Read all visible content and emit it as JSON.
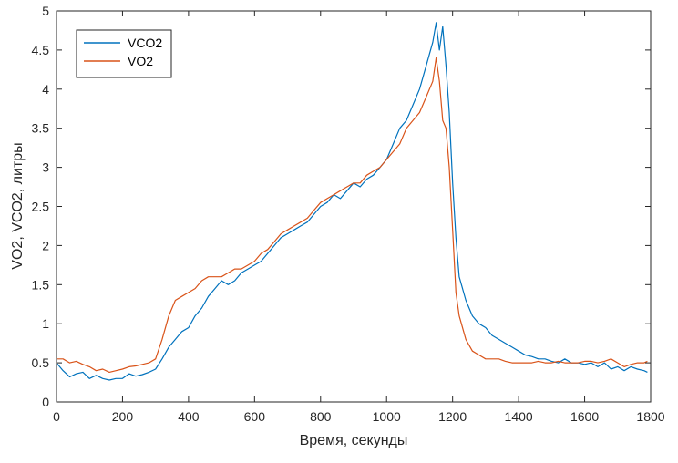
{
  "chart_data": {
    "type": "line",
    "xlabel": "Время, секунды",
    "ylabel": "VO2, VCO2, литры",
    "xlim": [
      0,
      1800
    ],
    "ylim": [
      0,
      5
    ],
    "xticks": [
      "0",
      "200",
      "400",
      "600",
      "800",
      "1000",
      "1200",
      "1400",
      "1600",
      "1800"
    ],
    "yticks": [
      "0",
      "0.5",
      "1",
      "1.5",
      "2",
      "2.5",
      "3",
      "3.5",
      "4",
      "4.5",
      "5"
    ],
    "grid": false,
    "legend_position": "top-left",
    "series": [
      {
        "name": "VCO2",
        "color": "#0072BD",
        "x": [
          0,
          20,
          40,
          60,
          80,
          100,
          120,
          140,
          160,
          180,
          200,
          220,
          240,
          260,
          280,
          300,
          320,
          340,
          360,
          380,
          400,
          420,
          440,
          460,
          480,
          500,
          520,
          540,
          560,
          580,
          600,
          620,
          640,
          660,
          680,
          700,
          720,
          740,
          760,
          780,
          800,
          820,
          840,
          860,
          880,
          900,
          920,
          940,
          960,
          980,
          1000,
          1020,
          1040,
          1060,
          1080,
          1100,
          1120,
          1140,
          1150,
          1160,
          1170,
          1180,
          1190,
          1200,
          1210,
          1220,
          1240,
          1260,
          1280,
          1300,
          1320,
          1340,
          1360,
          1380,
          1400,
          1420,
          1440,
          1460,
          1480,
          1500,
          1520,
          1540,
          1560,
          1580,
          1600,
          1620,
          1640,
          1660,
          1680,
          1700,
          1720,
          1740,
          1760,
          1780,
          1790
        ],
        "y": [
          0.5,
          0.4,
          0.32,
          0.36,
          0.38,
          0.3,
          0.34,
          0.3,
          0.28,
          0.3,
          0.3,
          0.36,
          0.33,
          0.35,
          0.38,
          0.42,
          0.55,
          0.7,
          0.8,
          0.9,
          0.95,
          1.1,
          1.2,
          1.35,
          1.45,
          1.55,
          1.5,
          1.55,
          1.65,
          1.7,
          1.75,
          1.8,
          1.9,
          2.0,
          2.1,
          2.15,
          2.2,
          2.25,
          2.3,
          2.4,
          2.5,
          2.55,
          2.65,
          2.6,
          2.7,
          2.8,
          2.75,
          2.85,
          2.9,
          3.0,
          3.1,
          3.3,
          3.5,
          3.6,
          3.8,
          4.0,
          4.3,
          4.6,
          4.85,
          4.5,
          4.8,
          4.3,
          3.7,
          2.8,
          2.1,
          1.6,
          1.3,
          1.1,
          1.0,
          0.95,
          0.85,
          0.8,
          0.75,
          0.7,
          0.65,
          0.6,
          0.58,
          0.55,
          0.55,
          0.52,
          0.5,
          0.55,
          0.5,
          0.5,
          0.48,
          0.5,
          0.45,
          0.5,
          0.42,
          0.45,
          0.4,
          0.45,
          0.42,
          0.4,
          0.38
        ]
      },
      {
        "name": "VO2",
        "color": "#D95319",
        "x": [
          0,
          20,
          40,
          60,
          80,
          100,
          120,
          140,
          160,
          180,
          200,
          220,
          240,
          260,
          280,
          300,
          320,
          340,
          360,
          380,
          400,
          420,
          440,
          460,
          480,
          500,
          520,
          540,
          560,
          580,
          600,
          620,
          640,
          660,
          680,
          700,
          720,
          740,
          760,
          780,
          800,
          820,
          840,
          860,
          880,
          900,
          920,
          940,
          960,
          980,
          1000,
          1020,
          1040,
          1060,
          1080,
          1100,
          1120,
          1140,
          1150,
          1160,
          1170,
          1180,
          1190,
          1200,
          1210,
          1220,
          1240,
          1260,
          1280,
          1300,
          1320,
          1340,
          1360,
          1380,
          1400,
          1420,
          1440,
          1460,
          1480,
          1500,
          1520,
          1540,
          1560,
          1580,
          1600,
          1620,
          1640,
          1660,
          1680,
          1700,
          1720,
          1740,
          1760,
          1780,
          1790
        ],
        "y": [
          0.55,
          0.55,
          0.5,
          0.52,
          0.48,
          0.45,
          0.4,
          0.42,
          0.38,
          0.4,
          0.42,
          0.45,
          0.46,
          0.48,
          0.5,
          0.55,
          0.8,
          1.1,
          1.3,
          1.35,
          1.4,
          1.45,
          1.55,
          1.6,
          1.6,
          1.6,
          1.65,
          1.7,
          1.7,
          1.75,
          1.8,
          1.9,
          1.95,
          2.05,
          2.15,
          2.2,
          2.25,
          2.3,
          2.35,
          2.45,
          2.55,
          2.6,
          2.65,
          2.7,
          2.75,
          2.8,
          2.8,
          2.9,
          2.95,
          3.0,
          3.1,
          3.2,
          3.3,
          3.5,
          3.6,
          3.7,
          3.9,
          4.1,
          4.4,
          4.1,
          3.6,
          3.5,
          3.0,
          2.2,
          1.4,
          1.1,
          0.8,
          0.65,
          0.6,
          0.55,
          0.55,
          0.55,
          0.52,
          0.5,
          0.5,
          0.5,
          0.5,
          0.52,
          0.5,
          0.5,
          0.52,
          0.5,
          0.5,
          0.5,
          0.52,
          0.52,
          0.5,
          0.52,
          0.55,
          0.5,
          0.45,
          0.48,
          0.5,
          0.5,
          0.52
        ]
      }
    ]
  }
}
